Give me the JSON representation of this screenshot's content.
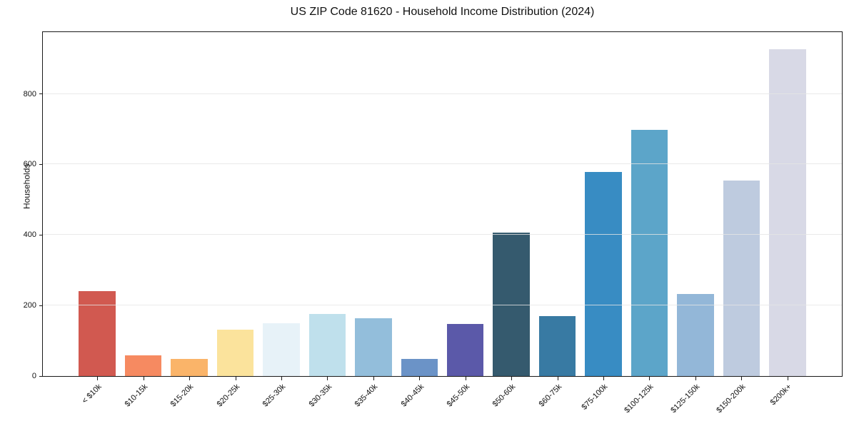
{
  "figure": {
    "title": "US ZIP Code 81620 - Household Income Distribution (2024)"
  },
  "chart_data": {
    "type": "bar",
    "title": "US ZIP Code 81620 - Household Income Distribution (2024)",
    "xlabel": "",
    "ylabel": "Households",
    "categories": [
      "< $10k",
      "$10-15k",
      "$15-20k",
      "$20-25k",
      "$25-30k",
      "$30-35k",
      "$35-40k",
      "$40-45k",
      "$45-50k",
      "$50-60k",
      "$60-75k",
      "$75-100k",
      "$100-125k",
      "$125-150k",
      "$150-200k",
      "$200k+"
    ],
    "values": [
      240,
      59,
      49,
      131,
      150,
      176,
      163,
      48,
      148,
      407,
      170,
      579,
      698,
      232,
      555,
      926
    ],
    "bar_colors": [
      "#d15950",
      "#f68a61",
      "#fab469",
      "#fbe39c",
      "#e7f2f8",
      "#bfe0ec",
      "#93bedb",
      "#6b93c7",
      "#5b59a9",
      "#355a6e",
      "#387aa3",
      "#388cc3",
      "#5ca5c9",
      "#93b7d8",
      "#becbdf",
      "#d8d9e6"
    ],
    "ylim": [
      0,
      975
    ],
    "yticks": [
      0,
      200,
      400,
      600,
      800
    ],
    "grid": true,
    "legend_position": "none"
  },
  "colors": {
    "background": "#ffffff",
    "spine": "#1a1a1a",
    "gridline": "#e5e5e5",
    "text": "#111111"
  }
}
